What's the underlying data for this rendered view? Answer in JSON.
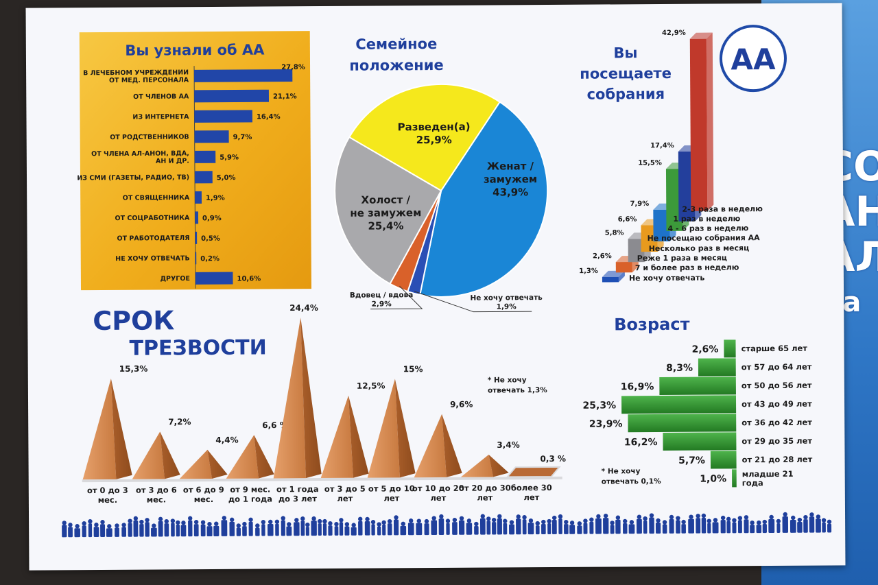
{
  "chart_data": [
    {
      "type": "bar",
      "title": "Вы узнали об АА",
      "categories": [
        "В ЛЕЧЕБНОМ УЧРЕЖДЕНИИ\nОТ МЕД. ПЕРСОНАЛА",
        "ОТ ЧЛЕНОВ АА",
        "ИЗ ИНТЕРНЕТА",
        "ОТ РОДСТВЕННИКОВ",
        "ОТ ЧЛЕНА АЛ-АНОН, ВДА,\nАН И ДР.",
        "ИЗ СМИ (ГАЗЕТЫ, РАДИО, ТВ)",
        "ОТ СВЯЩЕННИКА",
        "ОТ СОЦРАБОТНИКА",
        "ОТ РАБОТОДАТЕЛЯ",
        "НЕ ХОЧУ ОТВЕЧАТЬ",
        "ДРУГОЕ"
      ],
      "values": [
        27.8,
        21.1,
        16.4,
        9.7,
        5.9,
        5.0,
        1.9,
        0.9,
        0.5,
        0.2,
        10.6
      ],
      "labels": [
        "27,8%",
        "21,1%",
        "16,4%",
        "9,7%",
        "5,9%",
        "5,0%",
        "1,9%",
        "0,9%",
        "0,5%",
        "0,2%",
        "10,6%"
      ],
      "orientation": "horizontal"
    },
    {
      "type": "pie",
      "title": "Семейное\nположение",
      "categories": [
        "Женат /\nзамужем",
        "Холост /\nне замужем",
        "Разведен(а)",
        "Вдовец / вдова",
        "Не хочу отвечать"
      ],
      "values": [
        43.9,
        25.4,
        25.9,
        2.9,
        1.9
      ],
      "labels": [
        "43,9%",
        "25,4%",
        "25,9%",
        "2,9%",
        "1,9%"
      ],
      "colors": [
        "#1a86d6",
        "#a9a9ac",
        "#f5e81c",
        "#d9612a",
        "#2a4fb5"
      ]
    },
    {
      "type": "bar",
      "title": "Вы\nпосещаете\nсобрания",
      "categories": [
        "Не хочу отвечать",
        "7 и более раз в неделю",
        "Реже 1 раза в месяц",
        "Несколько раз в месяц",
        "Не посещаю собрания АА",
        "4 - 6 раз в неделю",
        "1 раз в неделю",
        "2-3 раза в неделю"
      ],
      "values": [
        1.3,
        2.6,
        5.8,
        6.6,
        7.9,
        15.5,
        17.4,
        42.9
      ],
      "labels": [
        "1,3%",
        "2,6%",
        "5,8%",
        "6,6%",
        "7,9%",
        "15,5%",
        "17,4%",
        "42,9%"
      ],
      "colors": [
        "#1e4fb5",
        "#d9612a",
        "#8b8b90",
        "#e89a1e",
        "#1e73c9",
        "#3c9a3a",
        "#233f9c",
        "#c0392b"
      ],
      "style": "3d"
    },
    {
      "type": "bar",
      "title": "СРОК\nТРЕЗВОСТИ",
      "categories": [
        "от 0 до 3\nмес.",
        "от 3 до 6\nмес.",
        "от 6 до 9\nмес.",
        "от 9 мес.\nдо 1 года",
        "от 1 года\nдо 3 лет",
        "от 3 до 5\nлет",
        "от 5 до 10\nлет",
        "от 10 до 20\nлет",
        "от 20 до 30\nлет",
        "более 30\nлет"
      ],
      "values": [
        15.3,
        7.2,
        4.4,
        6.6,
        24.4,
        12.5,
        15,
        9.6,
        3.4,
        0.3
      ],
      "labels": [
        "15,3%",
        "7,2%",
        "4,4%",
        "6,6 %",
        "24,4%",
        "12,5%",
        "15%",
        "9,6%",
        "3,4%",
        "0,3 %"
      ],
      "style": "pyramid",
      "note": "* Не хочу\nотвечать 1,3%"
    },
    {
      "type": "bar",
      "title": "Возраст",
      "categories": [
        "старше 65 лет",
        "от 57 до 64 лет",
        "от 50 до 56 лет",
        "от 43 до 49 лет",
        "от 36 до 42 лет",
        "от 29 до 35 лет",
        "от 21 до 28 лет",
        "младше 21\nгода"
      ],
      "values": [
        2.6,
        8.3,
        16.9,
        25.3,
        23.9,
        16.2,
        5.7,
        1.0
      ],
      "labels": [
        "2,6%",
        "8,3%",
        "16,9%",
        "25,3%",
        "23,9%",
        "16,2%",
        "5,7%",
        "1,0%"
      ],
      "orientation": "horizontal",
      "note": "* Не хочу\nотвечать 0,1%"
    }
  ],
  "logo": {
    "text": "АА"
  },
  "background_text": [
    "СО",
    "АН",
    "АЛ",
    "За"
  ],
  "colors": {
    "blue_title": "#1f3f9c",
    "yellow_panel": "#f2b21a",
    "bar_blue": "#2146a8",
    "pyramid": "#c97a3e",
    "age_bar": "#2f8a2f"
  }
}
